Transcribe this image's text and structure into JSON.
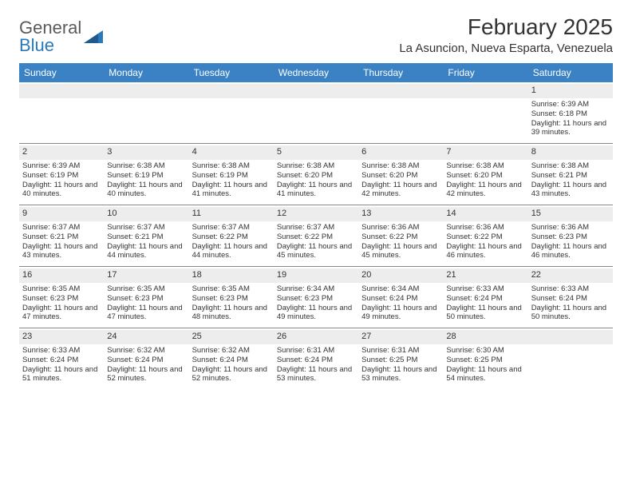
{
  "logo": {
    "text1": "General",
    "text2": "Blue"
  },
  "title": "February 2025",
  "location": "La Asuncion, Nueva Esparta, Venezuela",
  "colors": {
    "header_bg": "#3b82c4",
    "header_text": "#ffffff",
    "daynum_bg": "#ededed",
    "border": "#888888",
    "text": "#333333",
    "logo_gray": "#5a5a5a",
    "logo_blue": "#2a7ab9"
  },
  "day_names": [
    "Sunday",
    "Monday",
    "Tuesday",
    "Wednesday",
    "Thursday",
    "Friday",
    "Saturday"
  ],
  "weeks": [
    [
      null,
      null,
      null,
      null,
      null,
      null,
      {
        "n": "1",
        "sr": "6:39 AM",
        "ss": "6:18 PM",
        "dl": "11 hours and 39 minutes."
      }
    ],
    [
      {
        "n": "2",
        "sr": "6:39 AM",
        "ss": "6:19 PM",
        "dl": "11 hours and 40 minutes."
      },
      {
        "n": "3",
        "sr": "6:38 AM",
        "ss": "6:19 PM",
        "dl": "11 hours and 40 minutes."
      },
      {
        "n": "4",
        "sr": "6:38 AM",
        "ss": "6:19 PM",
        "dl": "11 hours and 41 minutes."
      },
      {
        "n": "5",
        "sr": "6:38 AM",
        "ss": "6:20 PM",
        "dl": "11 hours and 41 minutes."
      },
      {
        "n": "6",
        "sr": "6:38 AM",
        "ss": "6:20 PM",
        "dl": "11 hours and 42 minutes."
      },
      {
        "n": "7",
        "sr": "6:38 AM",
        "ss": "6:20 PM",
        "dl": "11 hours and 42 minutes."
      },
      {
        "n": "8",
        "sr": "6:38 AM",
        "ss": "6:21 PM",
        "dl": "11 hours and 43 minutes."
      }
    ],
    [
      {
        "n": "9",
        "sr": "6:37 AM",
        "ss": "6:21 PM",
        "dl": "11 hours and 43 minutes."
      },
      {
        "n": "10",
        "sr": "6:37 AM",
        "ss": "6:21 PM",
        "dl": "11 hours and 44 minutes."
      },
      {
        "n": "11",
        "sr": "6:37 AM",
        "ss": "6:22 PM",
        "dl": "11 hours and 44 minutes."
      },
      {
        "n": "12",
        "sr": "6:37 AM",
        "ss": "6:22 PM",
        "dl": "11 hours and 45 minutes."
      },
      {
        "n": "13",
        "sr": "6:36 AM",
        "ss": "6:22 PM",
        "dl": "11 hours and 45 minutes."
      },
      {
        "n": "14",
        "sr": "6:36 AM",
        "ss": "6:22 PM",
        "dl": "11 hours and 46 minutes."
      },
      {
        "n": "15",
        "sr": "6:36 AM",
        "ss": "6:23 PM",
        "dl": "11 hours and 46 minutes."
      }
    ],
    [
      {
        "n": "16",
        "sr": "6:35 AM",
        "ss": "6:23 PM",
        "dl": "11 hours and 47 minutes."
      },
      {
        "n": "17",
        "sr": "6:35 AM",
        "ss": "6:23 PM",
        "dl": "11 hours and 47 minutes."
      },
      {
        "n": "18",
        "sr": "6:35 AM",
        "ss": "6:23 PM",
        "dl": "11 hours and 48 minutes."
      },
      {
        "n": "19",
        "sr": "6:34 AM",
        "ss": "6:23 PM",
        "dl": "11 hours and 49 minutes."
      },
      {
        "n": "20",
        "sr": "6:34 AM",
        "ss": "6:24 PM",
        "dl": "11 hours and 49 minutes."
      },
      {
        "n": "21",
        "sr": "6:33 AM",
        "ss": "6:24 PM",
        "dl": "11 hours and 50 minutes."
      },
      {
        "n": "22",
        "sr": "6:33 AM",
        "ss": "6:24 PM",
        "dl": "11 hours and 50 minutes."
      }
    ],
    [
      {
        "n": "23",
        "sr": "6:33 AM",
        "ss": "6:24 PM",
        "dl": "11 hours and 51 minutes."
      },
      {
        "n": "24",
        "sr": "6:32 AM",
        "ss": "6:24 PM",
        "dl": "11 hours and 52 minutes."
      },
      {
        "n": "25",
        "sr": "6:32 AM",
        "ss": "6:24 PM",
        "dl": "11 hours and 52 minutes."
      },
      {
        "n": "26",
        "sr": "6:31 AM",
        "ss": "6:24 PM",
        "dl": "11 hours and 53 minutes."
      },
      {
        "n": "27",
        "sr": "6:31 AM",
        "ss": "6:25 PM",
        "dl": "11 hours and 53 minutes."
      },
      {
        "n": "28",
        "sr": "6:30 AM",
        "ss": "6:25 PM",
        "dl": "11 hours and 54 minutes."
      },
      null
    ]
  ],
  "labels": {
    "sunrise": "Sunrise:",
    "sunset": "Sunset:",
    "daylight": "Daylight:"
  }
}
